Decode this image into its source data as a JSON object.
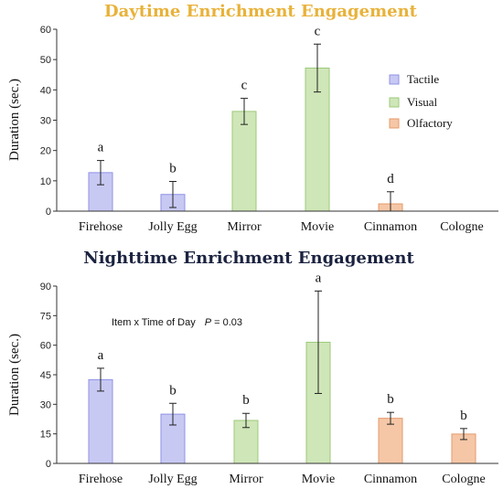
{
  "colors": {
    "tactile_fill": "#c8c9f3",
    "tactile_stroke": "#8f91e6",
    "visual_fill": "#cfe6b8",
    "visual_stroke": "#9cc97a",
    "olfactory_fill": "#f5c7a7",
    "olfactory_stroke": "#e49b6b"
  },
  "chart_data": [
    {
      "type": "bar",
      "title": "Daytime Enrichment Engagement",
      "ylabel": "Duration (sec.)",
      "xlabel": "",
      "ylim": [
        0,
        60
      ],
      "yticks": [
        "0",
        "10",
        "20",
        "30",
        "40",
        "50",
        "60"
      ],
      "categories": [
        "Firehose",
        "Jolly Egg",
        "Mirror",
        "Movie",
        "Cinnamon",
        "Cologne"
      ],
      "groups": [
        "Tactile",
        "Tactile",
        "Visual",
        "Visual",
        "Olfactory",
        "Olfactory"
      ],
      "values": [
        12.7,
        5.5,
        32.9,
        47.2,
        2.4,
        0
      ],
      "error": [
        4.0,
        4.3,
        4.3,
        7.9,
        4.0,
        0
      ],
      "significance": [
        "a",
        "b",
        "c",
        "c",
        "d",
        ""
      ],
      "legend": [
        {
          "label": "Tactile",
          "group": "Tactile"
        },
        {
          "label": "Visual",
          "group": "Visual"
        },
        {
          "label": "Olfactory",
          "group": "Olfactory"
        }
      ],
      "legend_position": "top-right",
      "grid": false
    },
    {
      "type": "bar",
      "title": "Nighttime Enrichment Engagement",
      "ylabel": "Duration (sec.)",
      "xlabel": "",
      "ylim": [
        0,
        90
      ],
      "yticks": [
        "0",
        "15",
        "30",
        "45",
        "60",
        "75",
        "90"
      ],
      "categories": [
        "Firehose",
        "Jolly Egg",
        "Mirror",
        "Movie",
        "Cinnamon",
        "Cologne"
      ],
      "groups": [
        "Tactile",
        "Tactile",
        "Visual",
        "Visual",
        "Olfactory",
        "Olfactory"
      ],
      "values": [
        42.5,
        25.0,
        21.8,
        61.5,
        22.9,
        14.9
      ],
      "error": [
        5.8,
        5.5,
        3.6,
        26.0,
        3.0,
        2.8
      ],
      "significance": [
        "a",
        "b",
        "b",
        "a",
        "b",
        "b"
      ],
      "annotation": {
        "prefix": "Item x Time of Day",
        "p_label": "P",
        "p_value": " = 0.03"
      },
      "grid": false
    }
  ]
}
